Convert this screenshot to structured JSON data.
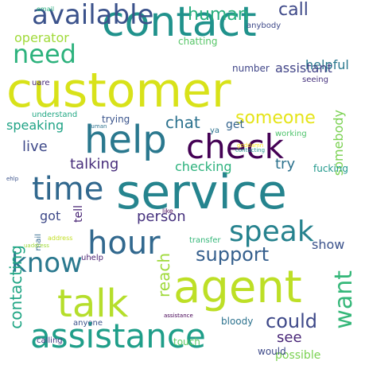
{
  "words": [
    {
      "text": "customer",
      "color": "#d8e219",
      "vertical": false
    },
    {
      "text": "service",
      "color": "#25848e",
      "vertical": false
    },
    {
      "text": "contact",
      "color": "#20928c",
      "vertical": false
    },
    {
      "text": "agent",
      "color": "#bddf26",
      "vertical": false
    },
    {
      "text": "help",
      "color": "#2a788e",
      "vertical": false
    },
    {
      "text": "check",
      "color": "#440154",
      "vertical": false
    },
    {
      "text": "assistance",
      "color": "#1f9e89",
      "vertical": false
    },
    {
      "text": "talk",
      "color": "#b5de2b",
      "vertical": false
    },
    {
      "text": "available",
      "color": "#3b528b",
      "vertical": false
    },
    {
      "text": "time",
      "color": "#31688e",
      "vertical": false
    },
    {
      "text": "hour",
      "color": "#31688e",
      "vertical": false
    },
    {
      "text": "speak",
      "color": "#26828e",
      "vertical": false
    },
    {
      "text": "know",
      "color": "#2a788e",
      "vertical": false
    },
    {
      "text": "need",
      "color": "#2db27d",
      "vertical": false
    },
    {
      "text": "want",
      "color": "#35b779",
      "vertical": true
    },
    {
      "text": "support",
      "color": "#355f8d",
      "vertical": false
    },
    {
      "text": "contacting",
      "color": "#21a685",
      "vertical": true
    },
    {
      "text": "someone",
      "color": "#e5e419",
      "vertical": false
    },
    {
      "text": "human",
      "color": "#29af7f",
      "vertical": false
    },
    {
      "text": "call",
      "color": "#3e4989",
      "vertical": false
    },
    {
      "text": "could",
      "color": "#3e4989",
      "vertical": false
    },
    {
      "text": "person",
      "color": "#46327e",
      "vertical": false
    },
    {
      "text": "checking",
      "color": "#2db27d",
      "vertical": false
    },
    {
      "text": "talking",
      "color": "#472d7b",
      "vertical": false
    },
    {
      "text": "live",
      "color": "#3e4989",
      "vertical": false
    },
    {
      "text": "chat",
      "color": "#2c728e",
      "vertical": false
    },
    {
      "text": "speaking",
      "color": "#20a386",
      "vertical": false
    },
    {
      "text": "operator",
      "color": "#a0da39",
      "vertical": false
    },
    {
      "text": "helpful",
      "color": "#2a788e",
      "vertical": false
    },
    {
      "text": "assistant",
      "color": "#414487",
      "vertical": false
    },
    {
      "text": "see",
      "color": "#482677",
      "vertical": false
    },
    {
      "text": "possible",
      "color": "#7ad151",
      "vertical": false
    },
    {
      "text": "reach",
      "color": "#9fda3a",
      "vertical": true
    },
    {
      "text": "show",
      "color": "#3b528b",
      "vertical": false
    },
    {
      "text": "somebody",
      "color": "#7ad151",
      "vertical": true
    },
    {
      "text": "fucking",
      "color": "#1f988b",
      "vertical": false
    },
    {
      "text": "try",
      "color": "#2c728e",
      "vertical": false
    },
    {
      "text": "chatting",
      "color": "#56c667",
      "vertical": false
    },
    {
      "text": "got",
      "color": "#3e4989",
      "vertical": false
    },
    {
      "text": "tell",
      "color": "#482475",
      "vertical": true
    },
    {
      "text": "get",
      "color": "#33638d",
      "vertical": false
    },
    {
      "text": "number",
      "color": "#404688",
      "vertical": false
    },
    {
      "text": "trying",
      "color": "#3a548c",
      "vertical": false
    },
    {
      "text": "working",
      "color": "#4ec36b",
      "vertical": false
    },
    {
      "text": "bloody",
      "color": "#2c728e",
      "vertical": false
    },
    {
      "text": "would",
      "color": "#3e4a89",
      "vertical": false
    },
    {
      "text": "touch",
      "color": "#5ec962",
      "vertical": false
    },
    {
      "text": "mail",
      "color": "#31688e",
      "vertical": true
    },
    {
      "text": "transfer",
      "color": "#35b779",
      "vertical": false
    },
    {
      "text": "calling",
      "color": "#443983",
      "vertical": false
    },
    {
      "text": "uhelp",
      "color": "#481f70",
      "vertical": false
    },
    {
      "text": "anyone",
      "color": "#3b528b",
      "vertical": false
    },
    {
      "text": "understand",
      "color": "#22a884",
      "vertical": false
    },
    {
      "text": "uare",
      "color": "#482878",
      "vertical": false
    },
    {
      "text": "anybody",
      "color": "#3e4989",
      "vertical": false
    },
    {
      "text": "seeing",
      "color": "#46327e",
      "vertical": false
    },
    {
      "text": "ya",
      "color": "#2c728e",
      "vertical": false
    },
    {
      "text": "email",
      "color": "#29af7f",
      "vertical": false
    },
    {
      "text": "address",
      "color": "#c2df23",
      "vertical": false
    },
    {
      "text": "like",
      "color": "#450559",
      "vertical": false
    },
    {
      "text": "ehlp",
      "color": "#3b528b",
      "vertical": false
    },
    {
      "text": "assistance",
      "color": "#440154",
      "vertical": false
    },
    {
      "text": "goddamn",
      "color": "#fde725",
      "vertical": false
    },
    {
      "text": "contacting",
      "color": "#21918c",
      "vertical": false
    },
    {
      "text": "human",
      "color": "#2c728e",
      "vertical": false
    },
    {
      "text": "uaddress",
      "color": "#9fda3a",
      "vertical": false
    }
  ]
}
